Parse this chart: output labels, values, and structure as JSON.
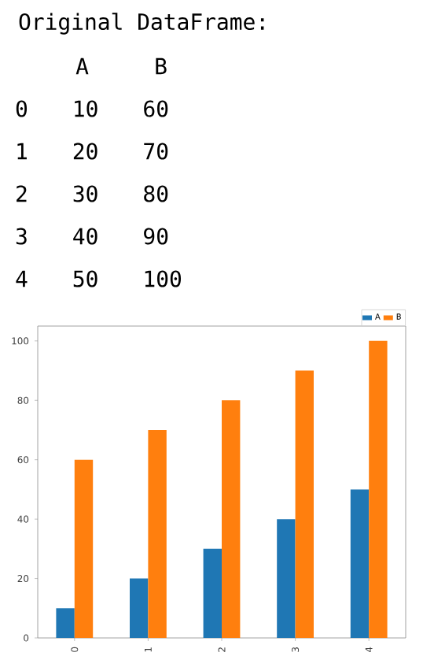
{
  "chart_data": [
    {
      "type": "other",
      "title": "Original DataFrame:",
      "annotations": [
        "A",
        "B",
        "0 10 60",
        "1 20 70",
        "2 30 80",
        "3 40 90",
        "4 50 100"
      ]
    },
    {
      "type": "bar",
      "categories": [
        "0",
        "1",
        "2",
        "3",
        "4"
      ],
      "series": [
        {
          "name": "A",
          "color": "#1f77b4",
          "values": [
            10,
            20,
            30,
            40,
            50
          ]
        },
        {
          "name": "B",
          "color": "#ff7f0e",
          "values": [
            60,
            70,
            80,
            90,
            100
          ]
        }
      ],
      "ylim": [
        0,
        105
      ],
      "yticks": [
        0,
        20,
        40,
        60,
        80,
        100
      ],
      "legend": "top right",
      "grid": false
    }
  ]
}
